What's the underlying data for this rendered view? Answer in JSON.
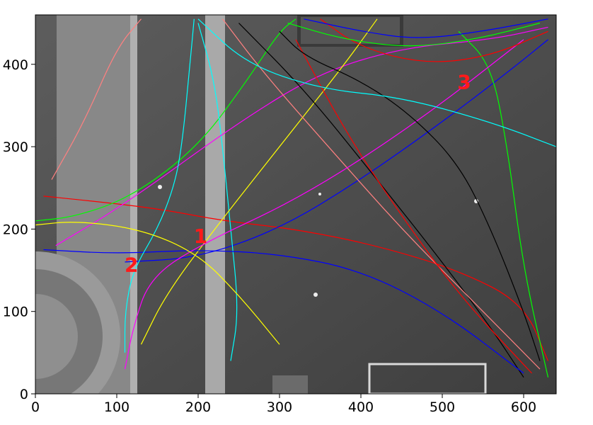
{
  "chart_data": {
    "type": "scatter",
    "title": "",
    "xlabel": "",
    "ylabel": "",
    "xlim": [
      0,
      640
    ],
    "ylim": [
      0,
      460
    ],
    "x_ticks": [
      0,
      100,
      200,
      300,
      400,
      500,
      600
    ],
    "y_ticks": [
      0,
      100,
      200,
      300,
      400
    ],
    "x_tick_labels": [
      "0",
      "100",
      "200",
      "300",
      "400",
      "500",
      "600"
    ],
    "y_tick_labels": [
      "0",
      "100",
      "200",
      "300",
      "400"
    ],
    "grid": false,
    "background": "grayscale overhead surveillance photo of a courtyard",
    "trajectory_colors": [
      "#ff0000",
      "#00ff00",
      "#0000ff",
      "#00ffff",
      "#ff00ff",
      "#ffff00",
      "#000000",
      "#ff8080"
    ],
    "series": [
      {
        "values": [
          [
            10,
            240
          ],
          [
            60,
            235
          ],
          [
            150,
            225
          ],
          [
            230,
            210
          ],
          [
            320,
            200
          ],
          [
            420,
            180
          ],
          [
            520,
            150
          ],
          [
            600,
            110
          ],
          [
            630,
            40
          ]
        ]
      },
      {
        "values": [
          [
            0,
            210
          ],
          [
            50,
            215
          ],
          [
            120,
            240
          ],
          [
            200,
            300
          ],
          [
            260,
            380
          ],
          [
            300,
            440
          ],
          [
            320,
            455
          ]
        ]
      },
      {
        "values": [
          [
            110,
            160
          ],
          [
            200,
            165
          ],
          [
            300,
            200
          ],
          [
            400,
            260
          ],
          [
            500,
            330
          ],
          [
            580,
            390
          ],
          [
            630,
            430
          ]
        ]
      },
      {
        "values": [
          [
            240,
            40
          ],
          [
            250,
            100
          ],
          [
            240,
            200
          ],
          [
            230,
            300
          ],
          [
            220,
            380
          ],
          [
            200,
            450
          ]
        ]
      },
      {
        "values": [
          [
            25,
            180
          ],
          [
            110,
            230
          ],
          [
            250,
            330
          ],
          [
            350,
            390
          ],
          [
            450,
            420
          ],
          [
            560,
            430
          ],
          [
            630,
            445
          ]
        ]
      },
      {
        "values": [
          [
            130,
            60
          ],
          [
            160,
            120
          ],
          [
            220,
            200
          ],
          [
            300,
            300
          ],
          [
            380,
            400
          ],
          [
            420,
            455
          ]
        ]
      },
      {
        "values": [
          [
            600,
            20
          ],
          [
            560,
            80
          ],
          [
            500,
            160
          ],
          [
            420,
            260
          ],
          [
            330,
            370
          ],
          [
            250,
            450
          ]
        ]
      },
      {
        "values": [
          [
            620,
            30
          ],
          [
            540,
            110
          ],
          [
            450,
            200
          ],
          [
            360,
            300
          ],
          [
            280,
            390
          ],
          [
            230,
            455
          ]
        ]
      },
      {
        "values": [
          [
            610,
            25
          ],
          [
            520,
            120
          ],
          [
            440,
            230
          ],
          [
            380,
            320
          ],
          [
            320,
            430
          ]
        ]
      },
      {
        "values": [
          [
            630,
            20
          ],
          [
            600,
            150
          ],
          [
            580,
            300
          ],
          [
            560,
            400
          ],
          [
            520,
            440
          ]
        ]
      },
      {
        "values": [
          [
            600,
            25
          ],
          [
            500,
            100
          ],
          [
            400,
            150
          ],
          [
            300,
            170
          ],
          [
            200,
            175
          ],
          [
            100,
            170
          ],
          [
            10,
            175
          ]
        ]
      },
      {
        "values": [
          [
            110,
            50
          ],
          [
            110,
            100
          ],
          [
            120,
            150
          ],
          [
            150,
            200
          ],
          [
            170,
            250
          ],
          [
            180,
            300
          ],
          [
            190,
            400
          ],
          [
            195,
            455
          ]
        ]
      },
      {
        "values": [
          [
            110,
            30
          ],
          [
            120,
            80
          ],
          [
            140,
            140
          ],
          [
            200,
            180
          ],
          [
            330,
            240
          ],
          [
            470,
            330
          ],
          [
            600,
            430
          ]
        ]
      },
      {
        "values": [
          [
            300,
            60
          ],
          [
            250,
            120
          ],
          [
            200,
            170
          ],
          [
            130,
            200
          ],
          [
            50,
            210
          ],
          [
            0,
            205
          ]
        ]
      },
      {
        "values": [
          [
            620,
            40
          ],
          [
            600,
            100
          ],
          [
            560,
            200
          ],
          [
            520,
            280
          ],
          [
            460,
            340
          ],
          [
            400,
            380
          ],
          [
            330,
            410
          ],
          [
            300,
            440
          ]
        ]
      },
      {
        "values": [
          [
            20,
            260
          ],
          [
            60,
            330
          ],
          [
            100,
            420
          ],
          [
            130,
            455
          ]
        ]
      },
      {
        "values": [
          [
            350,
            455
          ],
          [
            400,
            420
          ],
          [
            480,
            400
          ],
          [
            560,
            410
          ],
          [
            630,
            440
          ]
        ]
      },
      {
        "values": [
          [
            310,
            450
          ],
          [
            380,
            430
          ],
          [
            460,
            420
          ],
          [
            540,
            430
          ],
          [
            620,
            450
          ]
        ]
      },
      {
        "values": [
          [
            330,
            455
          ],
          [
            400,
            440
          ],
          [
            470,
            430
          ],
          [
            550,
            440
          ],
          [
            630,
            455
          ]
        ]
      },
      {
        "values": [
          [
            200,
            455
          ],
          [
            260,
            400
          ],
          [
            350,
            370
          ],
          [
            450,
            360
          ],
          [
            560,
            330
          ],
          [
            640,
            300
          ]
        ]
      }
    ],
    "markers": [
      {
        "label": "1",
        "x": 203,
        "y": 190
      },
      {
        "label": "2",
        "x": 118,
        "y": 155
      },
      {
        "label": "3",
        "x": 527,
        "y": 377
      }
    ]
  }
}
